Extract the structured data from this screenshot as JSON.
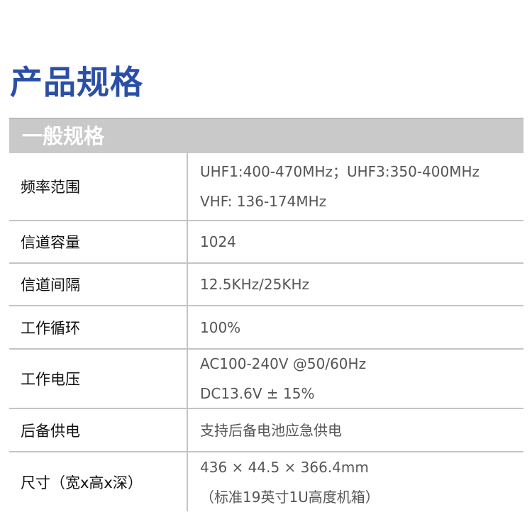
{
  "title": "产品规格",
  "section": "一般规格",
  "rows": [
    {
      "label": "频率范围",
      "values": [
        "UHF1:400-470MHz；UHF3:350-400MHz",
        "VHF: 136-174MHz"
      ]
    },
    {
      "label": "信道容量",
      "values": [
        "1024"
      ]
    },
    {
      "label": "信道间隔",
      "values": [
        "12.5KHz/25KHz"
      ]
    },
    {
      "label": "工作循环",
      "values": [
        "100%"
      ]
    },
    {
      "label": "工作电压",
      "values": [
        "AC100-240V @50/60Hz",
        "DC13.6V ± 15%"
      ]
    },
    {
      "label": "后备供电",
      "values": [
        "支持后备电池应急供电"
      ]
    },
    {
      "label": "尺寸（宽x高x深）",
      "values": [
        "436 × 44.5 × 366.4mm",
        "（标准19英寸1U高度机箱）"
      ]
    }
  ]
}
